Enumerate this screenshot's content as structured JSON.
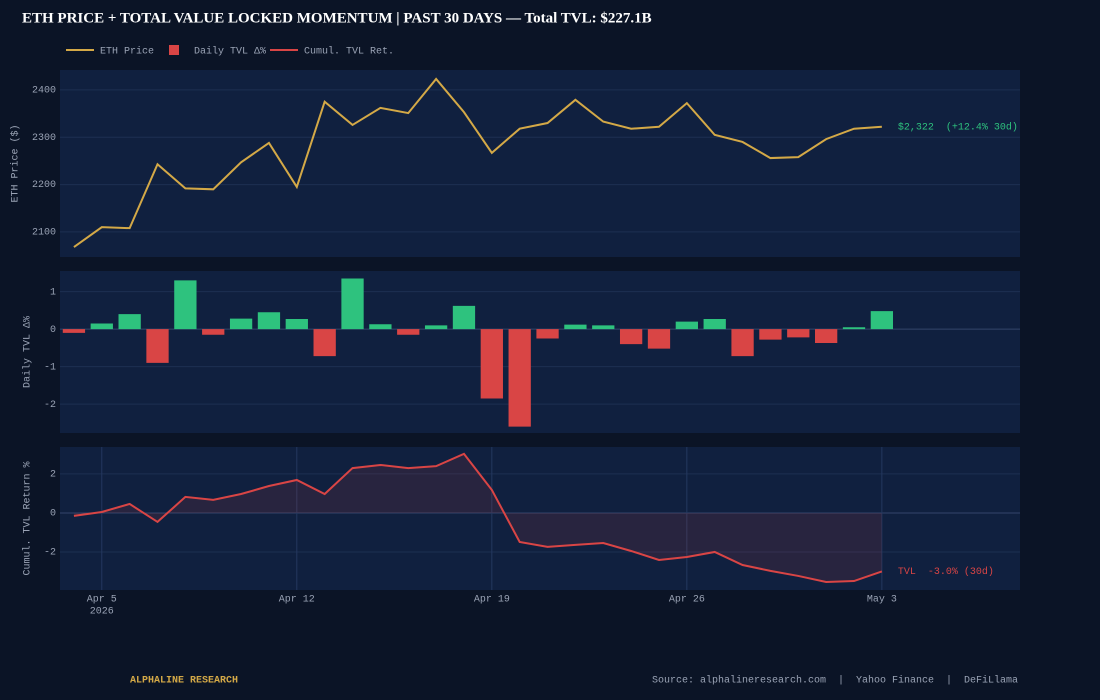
{
  "title": "ETH PRICE  +  TOTAL VALUE LOCKED MOMENTUM  |  PAST 30 DAYS  —  Total TVL: $227.1B",
  "footer": {
    "brand": "ALPHALINE RESEARCH",
    "source": "Source: alphalineresearch.com  |  Yahoo Finance  |  DeFiLlama"
  },
  "chart_data": [
    {
      "type": "line",
      "ylabel": "ETH Price ($)",
      "x": [
        "2026-04-04",
        "2026-04-05",
        "2026-04-06",
        "2026-04-07",
        "2026-04-08",
        "2026-04-09",
        "2026-04-10",
        "2026-04-11",
        "2026-04-12",
        "2026-04-13",
        "2026-04-14",
        "2026-04-15",
        "2026-04-16",
        "2026-04-17",
        "2026-04-18",
        "2026-04-19",
        "2026-04-20",
        "2026-04-21",
        "2026-04-22",
        "2026-04-23",
        "2026-04-24",
        "2026-04-25",
        "2026-04-26",
        "2026-04-27",
        "2026-04-28",
        "2026-04-29",
        "2026-04-30",
        "2026-05-01",
        "2026-05-02",
        "2026-05-03"
      ],
      "xlim": [
        "2026-04-03T12:00:00Z",
        "2026-05-07T23:00:00Z"
      ],
      "series": [
        {
          "name": "ETH Price",
          "color": "#d4a947",
          "values": [
            2068,
            2110,
            2108,
            2243,
            2192,
            2190,
            2247,
            2288,
            2195,
            2375,
            2326,
            2362,
            2351,
            2423,
            2353,
            2267,
            2318,
            2330,
            2379,
            2333,
            2318,
            2322,
            2372,
            2305,
            2290,
            2256,
            2258,
            2296,
            2318,
            2322
          ]
        }
      ],
      "ylim": [
        2047,
        2442
      ],
      "yticks": [
        2100,
        2200,
        2300,
        2400
      ],
      "grid": true,
      "annotation": "$2,322  (+12.4% 30d)",
      "annotation_color": "#2ec27e"
    },
    {
      "type": "bar",
      "ylabel": "Daily TVL Δ%",
      "x": [
        "2026-04-04",
        "2026-04-05",
        "2026-04-06",
        "2026-04-07",
        "2026-04-08",
        "2026-04-09",
        "2026-04-10",
        "2026-04-11",
        "2026-04-12",
        "2026-04-13",
        "2026-04-14",
        "2026-04-15",
        "2026-04-16",
        "2026-04-17",
        "2026-04-18",
        "2026-04-19",
        "2026-04-20",
        "2026-04-21",
        "2026-04-22",
        "2026-04-23",
        "2026-04-24",
        "2026-04-25",
        "2026-04-26",
        "2026-04-27",
        "2026-04-28",
        "2026-04-29",
        "2026-04-30",
        "2026-05-01",
        "2026-05-02",
        "2026-05-03"
      ],
      "xlim": [
        "2026-04-03T12:00:00Z",
        "2026-05-07T23:00:00Z"
      ],
      "series": [
        {
          "name": "Daily TVL Δ%",
          "color": "#d94545",
          "positive_color": "#2ec27e",
          "values": [
            -0.1,
            0.15,
            0.4,
            -0.9,
            1.3,
            -0.15,
            0.28,
            0.45,
            0.27,
            -0.72,
            1.35,
            0.13,
            -0.15,
            0.1,
            0.62,
            -1.85,
            -2.6,
            -0.25,
            0.12,
            0.1,
            -0.4,
            -0.52,
            0.2,
            0.27,
            -0.72,
            -0.28,
            -0.22,
            -0.37,
            0.05,
            0.48
          ]
        }
      ],
      "ylim": [
        -2.77,
        1.55
      ],
      "yticks": [
        -2,
        -1,
        0,
        1
      ],
      "grid": true
    },
    {
      "type": "area",
      "ylabel": "Cumul. TVL Return %",
      "x": [
        "2026-04-04",
        "2026-04-05",
        "2026-04-06",
        "2026-04-07",
        "2026-04-08",
        "2026-04-09",
        "2026-04-10",
        "2026-04-11",
        "2026-04-12",
        "2026-04-13",
        "2026-04-14",
        "2026-04-15",
        "2026-04-16",
        "2026-04-17",
        "2026-04-18",
        "2026-04-19",
        "2026-04-20",
        "2026-04-21",
        "2026-04-22",
        "2026-04-23",
        "2026-04-24",
        "2026-04-25",
        "2026-04-26",
        "2026-04-27",
        "2026-04-28",
        "2026-04-29",
        "2026-04-30",
        "2026-05-01",
        "2026-05-02",
        "2026-05-03"
      ],
      "xlim": [
        "2026-04-03T12:00:00Z",
        "2026-05-07T23:00:00Z"
      ],
      "xticks": [
        {
          "value": "2026-04-05",
          "label": "Apr 5"
        },
        {
          "value": "2026-04-12",
          "label": "Apr 12"
        },
        {
          "value": "2026-04-19",
          "label": "Apr 19"
        },
        {
          "value": "2026-04-26",
          "label": "Apr 26"
        },
        {
          "value": "2026-05-03",
          "label": "May 3"
        }
      ],
      "x_year_label": "2026",
      "xgrid": true,
      "series": [
        {
          "name": "Cumul. TVL Ret.",
          "color": "#d94545",
          "values": [
            -0.15,
            0.05,
            0.46,
            -0.46,
            0.82,
            0.67,
            0.97,
            1.38,
            1.69,
            0.97,
            2.3,
            2.46,
            2.3,
            2.4,
            3.03,
            1.18,
            -1.49,
            -1.74,
            -1.64,
            -1.54,
            -1.95,
            -2.41,
            -2.26,
            -2.0,
            -2.67,
            -2.97,
            -3.23,
            -3.54,
            -3.49,
            -3.0
          ]
        }
      ],
      "ylim": [
        -3.95,
        3.38
      ],
      "yticks": [
        -2,
        0,
        2
      ],
      "grid": true,
      "annotation": "TVL  -3.0% (30d)",
      "annotation_color": "#d94545"
    }
  ]
}
